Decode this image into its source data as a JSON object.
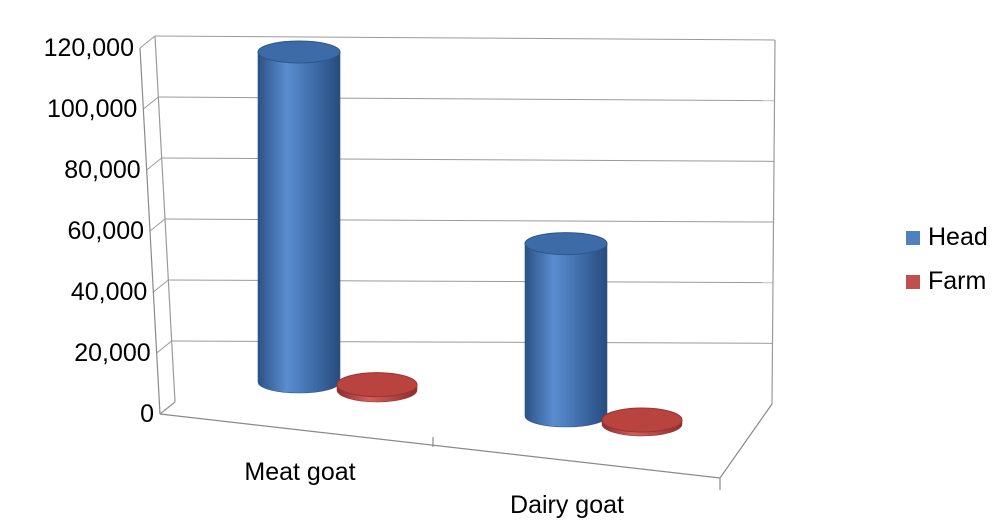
{
  "chart_data": {
    "type": "bar",
    "style": "3d-cylinder",
    "title": "",
    "xlabel": "",
    "ylabel": "",
    "categories": [
      "Meat goat",
      "Dairy goat"
    ],
    "series": [
      {
        "name": "Head",
        "values": [
          111000,
          58000
        ],
        "color": "#4f81bd"
      },
      {
        "name": "Farm",
        "values": [
          1800,
          800
        ],
        "color": "#c0504d"
      }
    ],
    "ylim": [
      0,
      120000
    ],
    "yticks": [
      "0",
      "20,000",
      "40,000",
      "60,000",
      "80,000",
      "100,000",
      "120,000"
    ],
    "grid": true,
    "legend_position": "right"
  }
}
